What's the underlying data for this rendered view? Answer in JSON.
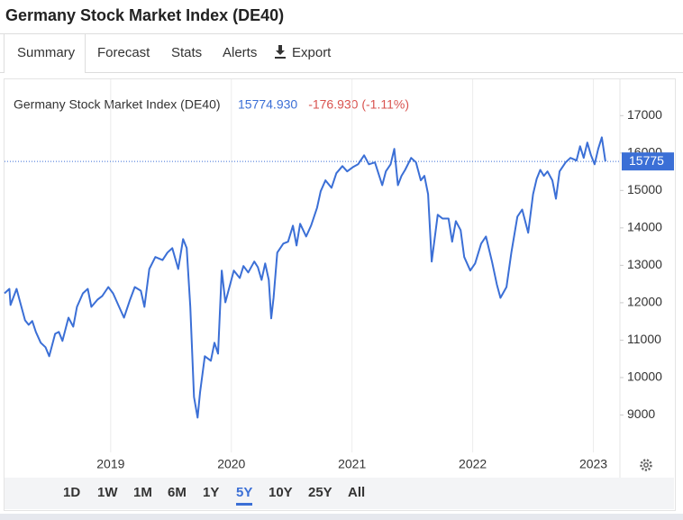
{
  "page_title": "Germany Stock Market Index (DE40)",
  "tabs": [
    "Summary",
    "Forecast",
    "Stats",
    "Alerts",
    "Export"
  ],
  "ranges": [
    "1D",
    "1W",
    "1M",
    "6M",
    "1Y",
    "5Y",
    "10Y",
    "25Y",
    "All"
  ],
  "active_range": "5Y",
  "chart_data": {
    "type": "line",
    "quote": "15774.930",
    "change": "-176.930 (-1.11%)",
    "current_price": {
      "value": 15774.93,
      "label": "15775"
    },
    "xlim": [
      2018.12,
      2023.22
    ],
    "xticks": [
      2019,
      2020,
      2021,
      2022,
      2023
    ],
    "ylim": [
      8000,
      17970
    ],
    "yticks": [
      9000,
      10000,
      11000,
      12000,
      13000,
      14000,
      15000,
      16000,
      17000
    ],
    "grid": "x",
    "series": [
      {
        "name": "Germany Stock Market Index (DE40)",
        "color": "#3b6fd6",
        "x": [
          2018.12,
          2018.16,
          2018.17,
          2018.22,
          2018.25,
          2018.29,
          2018.32,
          2018.35,
          2018.38,
          2018.42,
          2018.46,
          2018.49,
          2018.54,
          2018.57,
          2018.6,
          2018.65,
          2018.69,
          2018.72,
          2018.77,
          2018.81,
          2018.84,
          2018.89,
          2018.93,
          2018.98,
          2019.02,
          2019.07,
          2019.11,
          2019.16,
          2019.2,
          2019.25,
          2019.28,
          2019.32,
          2019.37,
          2019.43,
          2019.47,
          2019.51,
          2019.56,
          2019.6,
          2019.63,
          2019.66,
          2019.69,
          2019.72,
          2019.74,
          2019.78,
          2019.83,
          2019.86,
          2019.89,
          2019.92,
          2019.95,
          2019.98,
          2020.02,
          2020.07,
          2020.1,
          2020.14,
          2020.19,
          2020.22,
          2020.25,
          2020.28,
          2020.31,
          2020.33,
          2020.35,
          2020.38,
          2020.43,
          2020.47,
          2020.51,
          2020.54,
          2020.57,
          2020.62,
          2020.66,
          2020.71,
          2020.74,
          2020.78,
          2020.83,
          2020.87,
          2020.92,
          2020.96,
          2021.01,
          2021.05,
          2021.1,
          2021.14,
          2021.19,
          2021.25,
          2021.28,
          2021.32,
          2021.35,
          2021.38,
          2021.41,
          2021.44,
          2021.49,
          2021.53,
          2021.57,
          2021.6,
          2021.63,
          2021.66,
          2021.71,
          2021.75,
          2021.8,
          2021.83,
          2021.86,
          2021.9,
          2021.93,
          2021.98,
          2022.02,
          2022.07,
          2022.11,
          2022.16,
          2022.2,
          2022.23,
          2022.28,
          2022.32,
          2022.37,
          2022.41,
          2022.46,
          2022.5,
          2022.53,
          2022.56,
          2022.59,
          2022.62,
          2022.66,
          2022.69,
          2022.72,
          2022.77,
          2022.81,
          2022.86,
          2022.89,
          2022.92,
          2022.95,
          2022.98,
          2023.01,
          2023.04,
          2023.07,
          2023.1
        ],
        "values": [
          12250,
          12370,
          11940,
          12370,
          12010,
          11530,
          11410,
          11510,
          11220,
          10930,
          10810,
          10570,
          11170,
          11220,
          10980,
          11600,
          11360,
          11890,
          12250,
          12370,
          11890,
          12080,
          12180,
          12420,
          12250,
          11890,
          11600,
          12080,
          12420,
          12320,
          11890,
          12900,
          13220,
          13140,
          13340,
          13460,
          12900,
          13700,
          13460,
          11890,
          9480,
          8930,
          9600,
          10570,
          10450,
          10930,
          10640,
          12860,
          12010,
          12370,
          12860,
          12660,
          12980,
          12810,
          13100,
          12950,
          12610,
          13050,
          12610,
          11580,
          12130,
          13340,
          13580,
          13630,
          14060,
          13530,
          14110,
          13770,
          14060,
          14540,
          14980,
          15270,
          15070,
          15460,
          15650,
          15510,
          15630,
          15700,
          15940,
          15700,
          15750,
          15140,
          15510,
          15700,
          16110,
          15140,
          15390,
          15550,
          15870,
          15750,
          15270,
          15390,
          14900,
          13100,
          14350,
          14250,
          14250,
          13630,
          14180,
          13940,
          13220,
          12860,
          13050,
          13580,
          13770,
          13100,
          12490,
          12130,
          12420,
          13340,
          14300,
          14490,
          13870,
          14900,
          15310,
          15550,
          15390,
          15510,
          15270,
          14780,
          15510,
          15750,
          15870,
          15800,
          16180,
          15870,
          16280,
          15940,
          15700,
          16110,
          16420,
          15774.93
        ]
      }
    ]
  }
}
